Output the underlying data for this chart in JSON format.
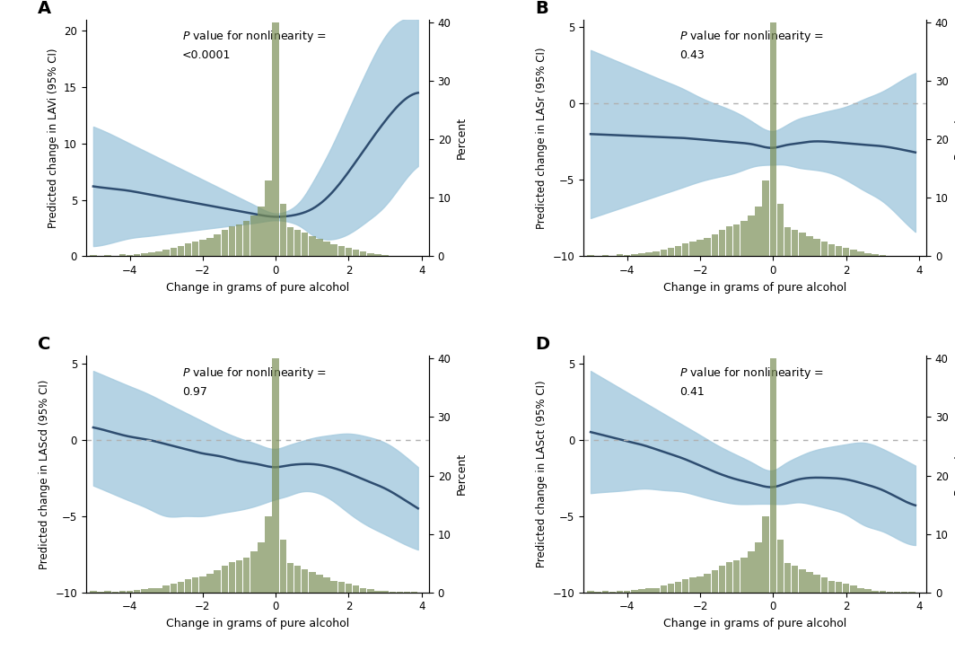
{
  "panels": [
    {
      "label": "A",
      "p_line1": "$\\it{P}$ value for nonlinearity =",
      "p_line2": "<0.0001",
      "ylabel": "Predicted change in LAVi (95% CI)",
      "ylim": [
        0,
        21
      ],
      "yticks": [
        0,
        5,
        10,
        15,
        20
      ],
      "has_hline": false,
      "spline_x": [
        -5.0,
        -4.5,
        -4.0,
        -3.5,
        -3.0,
        -2.5,
        -2.0,
        -1.5,
        -1.0,
        -0.5,
        0.0,
        0.3,
        0.7,
        1.0,
        1.5,
        2.0,
        2.5,
        3.0,
        3.5,
        3.9
      ],
      "spline_y": [
        6.2,
        6.0,
        5.8,
        5.5,
        5.2,
        4.9,
        4.6,
        4.3,
        4.0,
        3.7,
        3.5,
        3.55,
        3.8,
        4.2,
        5.5,
        7.5,
        9.8,
        12.0,
        13.8,
        14.5
      ],
      "ci_upper": [
        11.5,
        10.8,
        10.0,
        9.2,
        8.4,
        7.6,
        6.8,
        6.0,
        5.2,
        4.4,
        3.8,
        4.0,
        5.0,
        6.5,
        9.5,
        13.0,
        16.5,
        19.5,
        21.0,
        21.0
      ],
      "ci_lower": [
        0.9,
        1.2,
        1.6,
        1.8,
        2.0,
        2.2,
        2.4,
        2.6,
        2.8,
        3.0,
        3.2,
        3.1,
        2.6,
        1.9,
        1.5,
        2.0,
        3.1,
        4.5,
        6.6,
        8.0
      ],
      "hist_x": [
        -5.1,
        -4.9,
        -4.7,
        -4.5,
        -4.3,
        -4.1,
        -3.9,
        -3.7,
        -3.5,
        -3.3,
        -3.1,
        -2.9,
        -2.7,
        -2.5,
        -2.3,
        -2.1,
        -1.9,
        -1.7,
        -1.5,
        -1.3,
        -1.1,
        -0.9,
        -0.7,
        -0.5,
        -0.3,
        -0.1,
        0.1,
        0.3,
        0.5,
        0.7,
        0.9,
        1.1,
        1.3,
        1.5,
        1.7,
        1.9,
        2.1,
        2.3,
        2.5,
        2.7,
        2.9,
        3.1,
        3.3,
        3.5,
        3.7
      ],
      "hist_h": [
        0.2,
        0.1,
        0.2,
        0.1,
        0.3,
        0.2,
        0.4,
        0.5,
        0.7,
        0.8,
        1.2,
        1.5,
        1.8,
        2.2,
        2.5,
        2.8,
        3.2,
        3.8,
        4.5,
        5.2,
        5.5,
        6.0,
        7.0,
        8.5,
        13.0,
        40.0,
        9.0,
        5.0,
        4.5,
        4.0,
        3.5,
        3.0,
        2.5,
        2.0,
        1.8,
        1.5,
        1.2,
        0.8,
        0.5,
        0.3,
        0.2,
        0.1,
        0.1,
        0.1,
        0.1
      ]
    },
    {
      "label": "B",
      "p_line1": "$\\it{P}$ value for nonlinearity =",
      "p_line2": "0.43",
      "ylabel": "Predicted change in LASr (95% CI)",
      "ylim": [
        -10,
        5.5
      ],
      "yticks": [
        -10,
        -5,
        0,
        5
      ],
      "has_hline": true,
      "spline_x": [
        -5.0,
        -4.5,
        -4.0,
        -3.5,
        -3.0,
        -2.5,
        -2.0,
        -1.5,
        -1.0,
        -0.5,
        0.0,
        0.3,
        0.7,
        1.0,
        1.5,
        2.0,
        2.5,
        3.0,
        3.5,
        3.9
      ],
      "spline_y": [
        -2.0,
        -2.05,
        -2.1,
        -2.15,
        -2.2,
        -2.25,
        -2.35,
        -2.45,
        -2.55,
        -2.7,
        -2.9,
        -2.75,
        -2.6,
        -2.5,
        -2.5,
        -2.6,
        -2.7,
        -2.8,
        -3.0,
        -3.2
      ],
      "ci_upper": [
        3.5,
        3.0,
        2.5,
        2.0,
        1.5,
        1.0,
        0.4,
        -0.1,
        -0.6,
        -1.3,
        -1.8,
        -1.5,
        -1.0,
        -0.8,
        -0.5,
        -0.2,
        0.3,
        0.8,
        1.5,
        2.0
      ],
      "ci_lower": [
        -7.5,
        -7.1,
        -6.7,
        -6.3,
        -5.9,
        -5.5,
        -5.1,
        -4.8,
        -4.5,
        -4.1,
        -4.0,
        -4.0,
        -4.2,
        -4.3,
        -4.5,
        -5.0,
        -5.7,
        -6.4,
        -7.5,
        -8.4
      ],
      "hist_x": [
        -5.1,
        -4.9,
        -4.7,
        -4.5,
        -4.3,
        -4.1,
        -3.9,
        -3.7,
        -3.5,
        -3.3,
        -3.1,
        -2.9,
        -2.7,
        -2.5,
        -2.3,
        -2.1,
        -1.9,
        -1.7,
        -1.5,
        -1.3,
        -1.1,
        -0.9,
        -0.7,
        -0.5,
        -0.3,
        -0.1,
        0.1,
        0.3,
        0.5,
        0.7,
        0.9,
        1.1,
        1.3,
        1.5,
        1.7,
        1.9,
        2.1,
        2.3,
        2.5,
        2.7,
        2.9,
        3.1,
        3.3,
        3.5,
        3.7
      ],
      "hist_h": [
        0.2,
        0.1,
        0.2,
        0.1,
        0.3,
        0.2,
        0.4,
        0.5,
        0.7,
        0.8,
        1.2,
        1.5,
        1.8,
        2.2,
        2.5,
        2.8,
        3.2,
        3.8,
        4.5,
        5.2,
        5.5,
        6.0,
        7.0,
        8.5,
        13.0,
        40.0,
        9.0,
        5.0,
        4.5,
        4.0,
        3.5,
        3.0,
        2.5,
        2.0,
        1.8,
        1.5,
        1.2,
        0.8,
        0.5,
        0.3,
        0.2,
        0.1,
        0.1,
        0.1,
        0.1
      ]
    },
    {
      "label": "C",
      "p_line1": "$\\it{P}$ value for nonlinearity =",
      "p_line2": "0.97",
      "ylabel": "Predicted change in LAScd (95% CI)",
      "ylim": [
        -10,
        5.5
      ],
      "yticks": [
        -10,
        -5,
        0,
        5
      ],
      "has_hline": true,
      "spline_x": [
        -5.0,
        -4.5,
        -4.0,
        -3.5,
        -3.0,
        -2.5,
        -2.0,
        -1.5,
        -1.0,
        -0.5,
        0.0,
        0.3,
        0.7,
        1.0,
        1.5,
        2.0,
        2.5,
        3.0,
        3.5,
        3.9
      ],
      "spline_y": [
        0.8,
        0.5,
        0.2,
        0.0,
        -0.3,
        -0.6,
        -0.9,
        -1.1,
        -1.4,
        -1.6,
        -1.8,
        -1.7,
        -1.6,
        -1.6,
        -1.8,
        -2.2,
        -2.7,
        -3.2,
        -3.9,
        -4.5
      ],
      "ci_upper": [
        4.5,
        4.0,
        3.5,
        3.0,
        2.4,
        1.8,
        1.2,
        0.6,
        0.1,
        -0.3,
        -0.6,
        -0.4,
        -0.1,
        0.1,
        0.3,
        0.4,
        0.2,
        -0.2,
        -1.0,
        -1.8
      ],
      "ci_lower": [
        -3.0,
        -3.5,
        -4.0,
        -4.5,
        -5.0,
        -5.0,
        -5.0,
        -4.8,
        -4.6,
        -4.3,
        -3.9,
        -3.7,
        -3.4,
        -3.4,
        -3.9,
        -4.8,
        -5.6,
        -6.2,
        -6.8,
        -7.2
      ],
      "hist_x": [
        -5.1,
        -4.9,
        -4.7,
        -4.5,
        -4.3,
        -4.1,
        -3.9,
        -3.7,
        -3.5,
        -3.3,
        -3.1,
        -2.9,
        -2.7,
        -2.5,
        -2.3,
        -2.1,
        -1.9,
        -1.7,
        -1.5,
        -1.3,
        -1.1,
        -0.9,
        -0.7,
        -0.5,
        -0.3,
        -0.1,
        0.1,
        0.3,
        0.5,
        0.7,
        0.9,
        1.1,
        1.3,
        1.5,
        1.7,
        1.9,
        2.1,
        2.3,
        2.5,
        2.7,
        2.9,
        3.1,
        3.3,
        3.5,
        3.7
      ],
      "hist_h": [
        0.2,
        0.1,
        0.2,
        0.1,
        0.3,
        0.2,
        0.4,
        0.5,
        0.7,
        0.8,
        1.2,
        1.5,
        1.8,
        2.2,
        2.5,
        2.8,
        3.2,
        3.8,
        4.5,
        5.2,
        5.5,
        6.0,
        7.0,
        8.5,
        13.0,
        40.0,
        9.0,
        5.0,
        4.5,
        4.0,
        3.5,
        3.0,
        2.5,
        2.0,
        1.8,
        1.5,
        1.2,
        0.8,
        0.5,
        0.3,
        0.2,
        0.1,
        0.1,
        0.1,
        0.1
      ]
    },
    {
      "label": "D",
      "p_line1": "$\\it{P}$ value for nonlinearity =",
      "p_line2": "0.41",
      "ylabel": "Predicted change in LASct (95% CI)",
      "ylim": [
        -10,
        5.5
      ],
      "yticks": [
        -10,
        -5,
        0,
        5
      ],
      "has_hline": true,
      "spline_x": [
        -5.0,
        -4.5,
        -4.0,
        -3.5,
        -3.0,
        -2.5,
        -2.0,
        -1.5,
        -1.0,
        -0.5,
        0.0,
        0.3,
        0.7,
        1.0,
        1.5,
        2.0,
        2.5,
        3.0,
        3.5,
        3.9
      ],
      "spline_y": [
        0.5,
        0.2,
        -0.1,
        -0.4,
        -0.8,
        -1.2,
        -1.7,
        -2.2,
        -2.6,
        -2.9,
        -3.1,
        -2.9,
        -2.6,
        -2.5,
        -2.5,
        -2.6,
        -2.9,
        -3.3,
        -3.9,
        -4.3
      ],
      "ci_upper": [
        4.5,
        3.8,
        3.1,
        2.4,
        1.7,
        1.0,
        0.3,
        -0.4,
        -1.0,
        -1.6,
        -2.0,
        -1.6,
        -1.1,
        -0.8,
        -0.5,
        -0.3,
        -0.2,
        -0.6,
        -1.2,
        -1.7
      ],
      "ci_lower": [
        -3.5,
        -3.4,
        -3.3,
        -3.2,
        -3.3,
        -3.4,
        -3.7,
        -4.0,
        -4.2,
        -4.2,
        -4.2,
        -4.2,
        -4.1,
        -4.2,
        -4.5,
        -4.9,
        -5.6,
        -6.0,
        -6.6,
        -6.9
      ],
      "hist_x": [
        -5.1,
        -4.9,
        -4.7,
        -4.5,
        -4.3,
        -4.1,
        -3.9,
        -3.7,
        -3.5,
        -3.3,
        -3.1,
        -2.9,
        -2.7,
        -2.5,
        -2.3,
        -2.1,
        -1.9,
        -1.7,
        -1.5,
        -1.3,
        -1.1,
        -0.9,
        -0.7,
        -0.5,
        -0.3,
        -0.1,
        0.1,
        0.3,
        0.5,
        0.7,
        0.9,
        1.1,
        1.3,
        1.5,
        1.7,
        1.9,
        2.1,
        2.3,
        2.5,
        2.7,
        2.9,
        3.1,
        3.3,
        3.5,
        3.7
      ],
      "hist_h": [
        0.2,
        0.1,
        0.2,
        0.1,
        0.3,
        0.2,
        0.4,
        0.5,
        0.7,
        0.8,
        1.2,
        1.5,
        1.8,
        2.2,
        2.5,
        2.8,
        3.2,
        3.8,
        4.5,
        5.2,
        5.5,
        6.0,
        7.0,
        8.5,
        13.0,
        40.0,
        9.0,
        5.0,
        4.5,
        4.0,
        3.5,
        3.0,
        2.5,
        2.0,
        1.8,
        1.5,
        1.2,
        0.8,
        0.5,
        0.3,
        0.2,
        0.1,
        0.1,
        0.1,
        0.1
      ]
    }
  ],
  "xlim": [
    -5.2,
    4.2
  ],
  "xticks": [
    -4,
    -2,
    0,
    2,
    4
  ],
  "xlabel": "Change in grams of pure alcohol",
  "right_ylabel": "Percent",
  "right_yticks": [
    0,
    10,
    20,
    30,
    40
  ],
  "hist_max": 40.5,
  "line_color": "#2e4d70",
  "ci_color": "#a8cce0",
  "hist_color": "#7b8f57",
  "hline_color": "#b0b0b0",
  "bg_color": "#ffffff"
}
